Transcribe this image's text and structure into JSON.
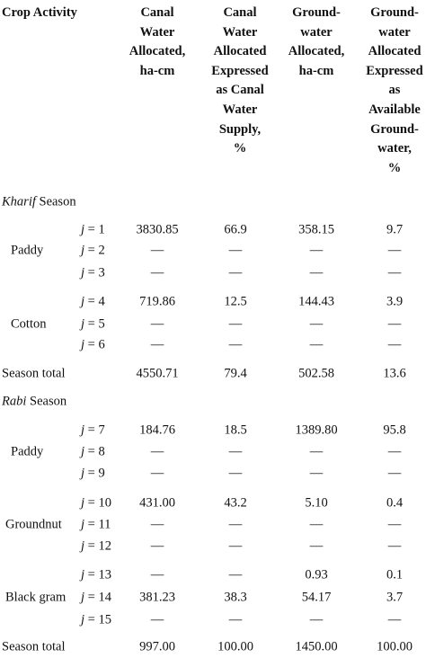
{
  "header": {
    "crop_activity": "Crop Activity",
    "col1": [
      "Canal",
      "Water",
      "Allocated,",
      "ha-cm"
    ],
    "col2": [
      "Canal",
      "Water",
      "Allocated",
      "Expressed",
      "as Canal",
      "Water",
      "Supply,",
      "%"
    ],
    "col3": [
      "Ground-",
      "water",
      "Allocated,",
      "ha-cm"
    ],
    "col4": [
      "Ground-",
      "water",
      "Allocated",
      "Expressed",
      "as",
      "Available",
      "Ground-",
      "water,",
      "%"
    ]
  },
  "kharif": {
    "title_em": "Kharif",
    "title_rest": " Season",
    "groups": [
      {
        "crop": "Paddy",
        "rows": [
          {
            "j": "j = 1",
            "c1": "3830.85",
            "c2": "66.9",
            "c3": "358.15",
            "c4": "9.7"
          },
          {
            "j": "j = 2",
            "c1": "—",
            "c2": "—",
            "c3": "—",
            "c4": "—"
          },
          {
            "j": "j = 3",
            "c1": "—",
            "c2": "—",
            "c3": "—",
            "c4": "—"
          }
        ]
      },
      {
        "crop": "Cotton",
        "rows": [
          {
            "j": "j = 4",
            "c1": "719.86",
            "c2": "12.5",
            "c3": "144.43",
            "c4": "3.9"
          },
          {
            "j": "j = 5",
            "c1": "—",
            "c2": "—",
            "c3": "—",
            "c4": "—"
          },
          {
            "j": "j = 6",
            "c1": "—",
            "c2": "—",
            "c3": "—",
            "c4": "—"
          }
        ]
      }
    ],
    "total": {
      "label": "Season total",
      "c1": "4550.71",
      "c2": "79.4",
      "c3": "502.58",
      "c4": "13.6"
    }
  },
  "rabi": {
    "title_em": "Rabi",
    "title_rest": " Season",
    "groups": [
      {
        "crop": "Paddy",
        "rows": [
          {
            "j": "j = 7",
            "c1": "184.76",
            "c2": "18.5",
            "c3": "1389.80",
            "c4": "95.8"
          },
          {
            "j": "j = 8",
            "c1": "—",
            "c2": "—",
            "c3": "—",
            "c4": "—"
          },
          {
            "j": "j = 9",
            "c1": "—",
            "c2": "—",
            "c3": "—",
            "c4": "—"
          }
        ]
      },
      {
        "crop": "Groundnut",
        "rows": [
          {
            "j": "j = 10",
            "c1": "431.00",
            "c2": "43.2",
            "c3": "5.10",
            "c4": "0.4"
          },
          {
            "j": "j = 11",
            "c1": "—",
            "c2": "—",
            "c3": "—",
            "c4": "—"
          },
          {
            "j": "j = 12",
            "c1": "—",
            "c2": "—",
            "c3": "—",
            "c4": "—"
          }
        ]
      },
      {
        "crop": "Black gram",
        "rows": [
          {
            "j": "j = 13",
            "c1": "—",
            "c2": "—",
            "c3": "0.93",
            "c4": "0.1"
          },
          {
            "j": "j = 14",
            "c1": "381.23",
            "c2": "38.3",
            "c3": "54.17",
            "c4": "3.7"
          },
          {
            "j": "j = 15",
            "c1": "—",
            "c2": "—",
            "c3": "—",
            "c4": "—"
          }
        ]
      }
    ],
    "total": {
      "label": "Season total",
      "c1": "997.00",
      "c2": "100.00",
      "c3": "1450.00",
      "c4": "100.00"
    }
  }
}
